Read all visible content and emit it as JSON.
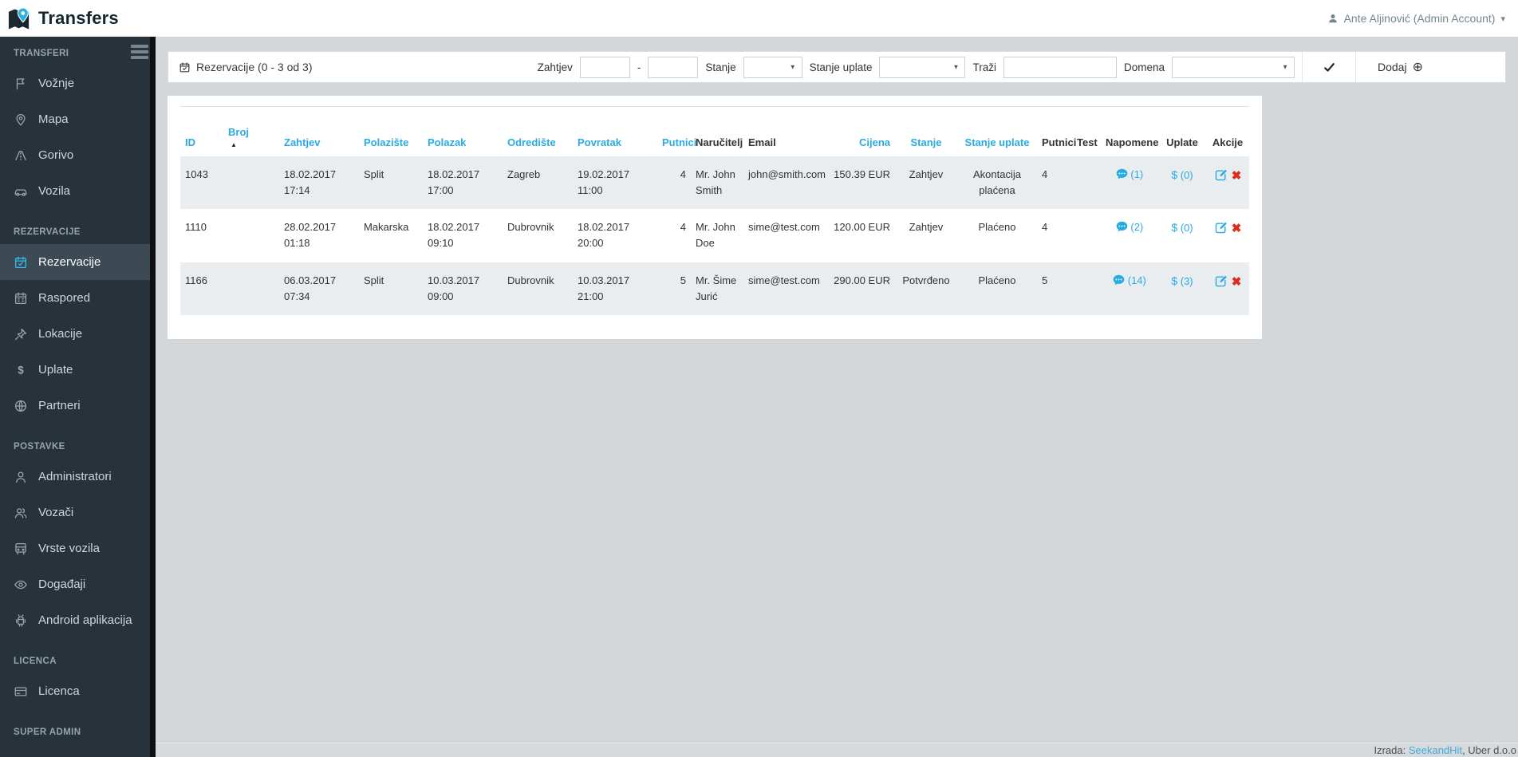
{
  "app": {
    "title": "Transfers",
    "user": "Ante Aljinović (Admin Account)"
  },
  "colors": {
    "accent_blue": "#29abe2",
    "sidebar_bg": "#28323a",
    "sidebar_active_bg": "#3b4a53",
    "delete_red": "#dd2c1a",
    "stripe": "#e9edf0"
  },
  "sidebar": {
    "sections": [
      {
        "label": "TRANSFERI",
        "items": [
          {
            "icon": "flag",
            "label": "Vožnje"
          },
          {
            "icon": "map-pin",
            "label": "Mapa"
          },
          {
            "icon": "road",
            "label": "Gorivo"
          },
          {
            "icon": "car",
            "label": "Vozila"
          }
        ]
      },
      {
        "label": "REZERVACIJE",
        "items": [
          {
            "icon": "calendar-check",
            "label": "Rezervacije",
            "active": true
          },
          {
            "icon": "calendar",
            "label": "Raspored"
          },
          {
            "icon": "pushpin",
            "label": "Lokacije"
          },
          {
            "icon": "dollar",
            "label": "Uplate"
          },
          {
            "icon": "globe",
            "label": "Partneri"
          }
        ]
      },
      {
        "label": "POSTAVKE",
        "items": [
          {
            "icon": "user",
            "label": "Administratori"
          },
          {
            "icon": "users",
            "label": "Vozači"
          },
          {
            "icon": "bus",
            "label": "Vrste vozila"
          },
          {
            "icon": "eye",
            "label": "Događaji"
          },
          {
            "icon": "android",
            "label": "Android aplikacija"
          }
        ]
      },
      {
        "label": "LICENCA",
        "items": [
          {
            "icon": "credit-card",
            "label": "Licenca"
          }
        ]
      },
      {
        "label": "SUPER ADMIN",
        "items": []
      }
    ]
  },
  "filter_bar": {
    "title": "Rezervacije (0 - 3 od 3)",
    "zahtjev_label": "Zahtjev",
    "range_separator": "-",
    "zahtjev_from": "",
    "zahtjev_to": "",
    "stanje_label": "Stanje",
    "stanje_value": "",
    "stanje_uplate_label": "Stanje uplate",
    "stanje_uplate_value": "",
    "trazi_label": "Traži",
    "trazi_value": "",
    "domena_label": "Domena",
    "domena_value": "",
    "dodaj_label": "Dodaj"
  },
  "table": {
    "sort": {
      "column": "broj",
      "direction": "asc"
    },
    "columns": [
      {
        "key": "id",
        "label": "ID",
        "sortable": true
      },
      {
        "key": "broj",
        "label": "Broj",
        "sortable": true
      },
      {
        "key": "zahtjev",
        "label": "Zahtjev",
        "sortable": true
      },
      {
        "key": "polaziste",
        "label": "Polazište",
        "sortable": true
      },
      {
        "key": "polazak",
        "label": "Polazak",
        "sortable": true
      },
      {
        "key": "odrediste",
        "label": "Odredište",
        "sortable": true
      },
      {
        "key": "povratak",
        "label": "Povratak",
        "sortable": true
      },
      {
        "key": "putnici",
        "label": "Putnici",
        "sortable": true
      },
      {
        "key": "narucitelj",
        "label": "Naručitelj",
        "sortable": false
      },
      {
        "key": "email",
        "label": "Email",
        "sortable": false
      },
      {
        "key": "cijena",
        "label": "Cijena",
        "sortable": true
      },
      {
        "key": "stanje",
        "label": "Stanje",
        "sortable": true
      },
      {
        "key": "stanje_uplate",
        "label": "Stanje uplate",
        "sortable": true
      },
      {
        "key": "putnici2",
        "label": "Putnici",
        "sortable": false
      },
      {
        "key": "test",
        "label": "Test",
        "sortable": false
      },
      {
        "key": "napomene",
        "label": "Napomene",
        "sortable": false
      },
      {
        "key": "uplate",
        "label": "Uplate",
        "sortable": false
      },
      {
        "key": "akcije",
        "label": "Akcije",
        "sortable": false
      }
    ],
    "rows": [
      {
        "id": "1043",
        "broj": "",
        "zahtjev": "18.02.2017 17:14",
        "polaziste": "Split",
        "polazak": "18.02.2017 17:00",
        "odrediste": "Zagreb",
        "povratak": "19.02.2017 11:00",
        "putnici": "4",
        "narucitelj": "Mr. John Smith",
        "email": "john@smith.com",
        "cijena": "150.39 EUR",
        "stanje": "Zahtjev",
        "stanje_uplate": "Akontacija plaćena",
        "putnici2": "4",
        "test": "",
        "napomene": "(1)",
        "uplate": "(0)"
      },
      {
        "id": "1110",
        "broj": "",
        "zahtjev": "28.02.2017 01:18",
        "polaziste": "Makarska",
        "polazak": "18.02.2017 09:10",
        "odrediste": "Dubrovnik",
        "povratak": "18.02.2017 20:00",
        "putnici": "4",
        "narucitelj": "Mr. John Doe",
        "email": "sime@test.com",
        "cijena": "120.00 EUR",
        "stanje": "Zahtjev",
        "stanje_uplate": "Plaćeno",
        "putnici2": "4",
        "test": "",
        "napomene": "(2)",
        "uplate": "(0)"
      },
      {
        "id": "1166",
        "broj": "",
        "zahtjev": "06.03.2017 07:34",
        "polaziste": "Split",
        "polazak": "10.03.2017 09:00",
        "odrediste": "Dubrovnik",
        "povratak": "10.03.2017 21:00",
        "putnici": "5",
        "narucitelj": "Mr. Šime Jurić",
        "email": "sime@test.com",
        "cijena": "290.00 EUR",
        "stanje": "Potvrđeno",
        "stanje_uplate": "Plaćeno",
        "putnici2": "5",
        "test": "",
        "napomene": "(14)",
        "uplate": "(3)"
      }
    ]
  },
  "footer": {
    "prefix": "Izrada: ",
    "link": "SeekandHit",
    "suffix": ", Uber d.o.o"
  }
}
